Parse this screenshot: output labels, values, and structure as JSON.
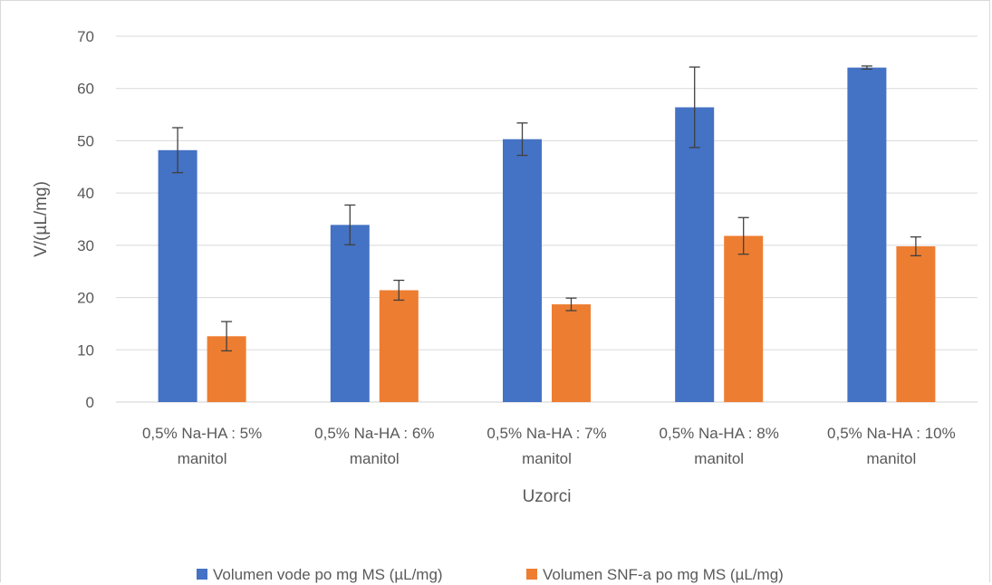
{
  "chart_data": {
    "type": "bar",
    "title": "",
    "xlabel": "Uzorci",
    "ylabel": "V/(µL/mg)",
    "ylim": [
      0,
      70
    ],
    "yticks": [
      0,
      10,
      20,
      30,
      40,
      50,
      60,
      70
    ],
    "grid": true,
    "legend_position": "bottom",
    "categories": [
      [
        "0,5% Na-HA : 5%",
        "manitol"
      ],
      [
        "0,5% Na-HA : 6%",
        "manitol"
      ],
      [
        "0,5% Na-HA : 7%",
        "manitol"
      ],
      [
        "0,5% Na-HA : 8%",
        "manitol"
      ],
      [
        "0,5% Na-HA : 10%",
        "manitol"
      ]
    ],
    "series": [
      {
        "name": "Volumen vode po mg MS (µL/mg)",
        "color": "#4472c4",
        "values": [
          48.2,
          33.9,
          50.3,
          56.4,
          64.0
        ],
        "error": [
          4.3,
          3.8,
          3.1,
          7.7,
          0.3
        ]
      },
      {
        "name": "Volumen SNF-a po mg MS (µL/mg)",
        "color": "#ed7d31",
        "values": [
          12.6,
          21.4,
          18.7,
          31.8,
          29.8
        ],
        "error": [
          2.8,
          1.9,
          1.2,
          3.5,
          1.8
        ]
      }
    ]
  }
}
